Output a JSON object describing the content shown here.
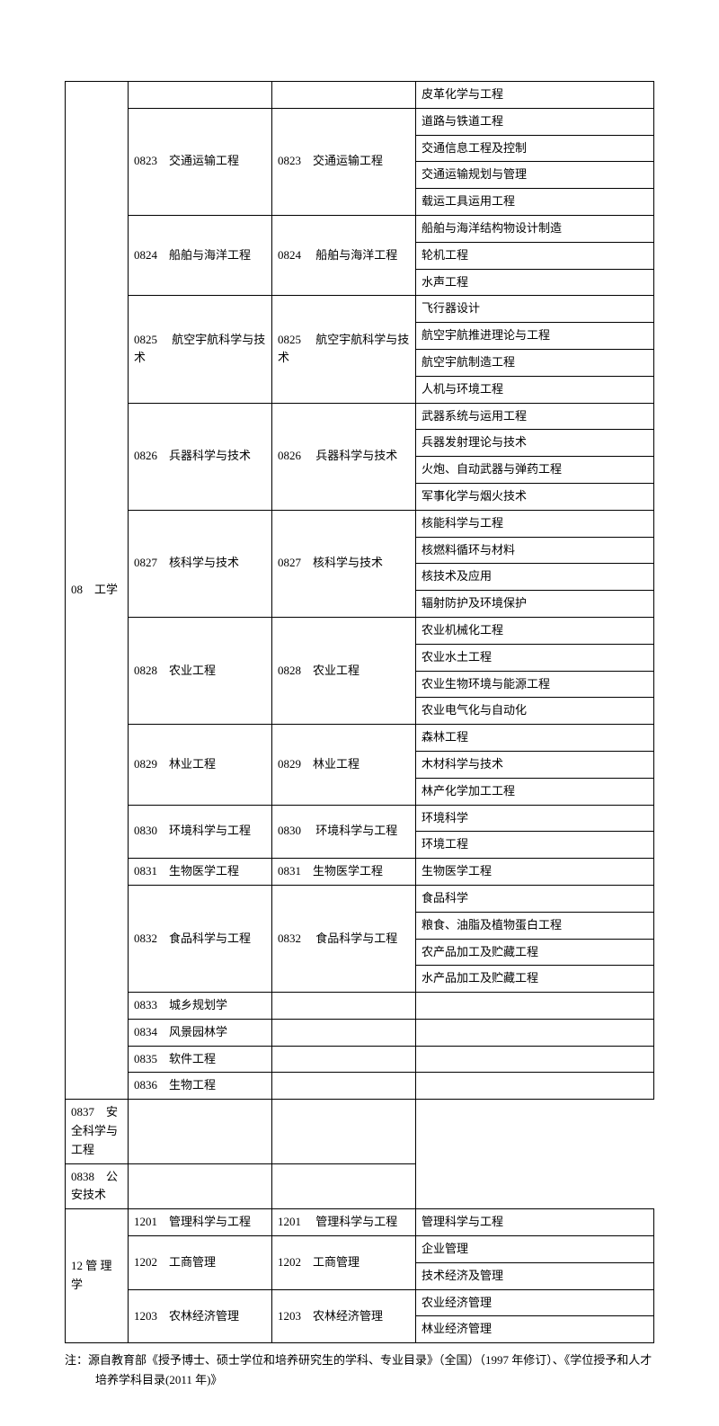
{
  "table": {
    "colWidths": [
      "70px",
      "160px",
      "160px",
      "auto"
    ],
    "border_color": "#000000",
    "font_size_pt": 10,
    "background": "#ffffff",
    "rows": [
      {
        "cells": [
          {
            "text": "08　工学",
            "rowspan": 38
          },
          {
            "text": "",
            "rowspan": 1
          },
          {
            "text": "",
            "rowspan": 1
          },
          {
            "text": "皮革化学与工程"
          }
        ]
      },
      {
        "cells": [
          {
            "text": "0823　交通运输工程",
            "rowspan": 4
          },
          {
            "text": "0823　交通运输工程",
            "rowspan": 4
          },
          {
            "text": "道路与铁道工程"
          }
        ]
      },
      {
        "cells": [
          {
            "text": "交通信息工程及控制"
          }
        ]
      },
      {
        "cells": [
          {
            "text": "交通运输规划与管理"
          }
        ]
      },
      {
        "cells": [
          {
            "text": "载运工具运用工程"
          }
        ]
      },
      {
        "cells": [
          {
            "text": "0824　船舶与海洋工程",
            "rowspan": 3
          },
          {
            "text": "0824　 船舶与海洋工程",
            "rowspan": 3
          },
          {
            "text": "船舶与海洋结构物设计制造"
          }
        ]
      },
      {
        "cells": [
          {
            "text": "轮机工程"
          }
        ]
      },
      {
        "cells": [
          {
            "text": "水声工程"
          }
        ]
      },
      {
        "cells": [
          {
            "text": "0825　 航空宇航科学与技术",
            "rowspan": 4
          },
          {
            "text": "0825　 航空宇航科学与技术",
            "rowspan": 4
          },
          {
            "text": "飞行器设计"
          }
        ]
      },
      {
        "cells": [
          {
            "text": "航空宇航推进理论与工程"
          }
        ]
      },
      {
        "cells": [
          {
            "text": "航空宇航制造工程"
          }
        ]
      },
      {
        "cells": [
          {
            "text": "人机与环境工程"
          }
        ]
      },
      {
        "cells": [
          {
            "text": "0826　兵器科学与技术",
            "rowspan": 4
          },
          {
            "text": "0826　 兵器科学与技术",
            "rowspan": 4
          },
          {
            "text": "武器系统与运用工程"
          }
        ]
      },
      {
        "cells": [
          {
            "text": "兵器发射理论与技术"
          }
        ]
      },
      {
        "cells": [
          {
            "text": "火炮、自动武器与弹药工程"
          }
        ]
      },
      {
        "cells": [
          {
            "text": "军事化学与烟火技术"
          }
        ]
      },
      {
        "cells": [
          {
            "text": "0827　核科学与技术",
            "rowspan": 4
          },
          {
            "text": "0827　核科学与技术",
            "rowspan": 4
          },
          {
            "text": "核能科学与工程"
          }
        ]
      },
      {
        "cells": [
          {
            "text": "核燃料循环与材料"
          }
        ]
      },
      {
        "cells": [
          {
            "text": "核技术及应用"
          }
        ]
      },
      {
        "cells": [
          {
            "text": "辐射防护及环境保护"
          }
        ]
      },
      {
        "cells": [
          {
            "text": "0828　农业工程",
            "rowspan": 4
          },
          {
            "text": "0828　农业工程",
            "rowspan": 4
          },
          {
            "text": "农业机械化工程"
          }
        ]
      },
      {
        "cells": [
          {
            "text": "农业水土工程"
          }
        ]
      },
      {
        "cells": [
          {
            "text": "农业生物环境与能源工程"
          }
        ]
      },
      {
        "cells": [
          {
            "text": "农业电气化与自动化"
          }
        ]
      },
      {
        "cells": [
          {
            "text": "0829　林业工程",
            "rowspan": 3
          },
          {
            "text": "0829　林业工程",
            "rowspan": 3
          },
          {
            "text": "森林工程"
          }
        ]
      },
      {
        "cells": [
          {
            "text": "木材科学与技术"
          }
        ]
      },
      {
        "cells": [
          {
            "text": "林产化学加工工程"
          }
        ]
      },
      {
        "cells": [
          {
            "text": "0830　环境科学与工程",
            "rowspan": 2
          },
          {
            "text": "0830　 环境科学与工程",
            "rowspan": 2
          },
          {
            "text": "环境科学"
          }
        ]
      },
      {
        "cells": [
          {
            "text": "环境工程"
          }
        ]
      },
      {
        "cells": [
          {
            "text": "0831　生物医学工程"
          },
          {
            "text": "0831　生物医学工程"
          },
          {
            "text": "生物医学工程"
          }
        ]
      },
      {
        "cells": [
          {
            "text": "0832　食品科学与工程",
            "rowspan": 4
          },
          {
            "text": "0832　 食品科学与工程",
            "rowspan": 4
          },
          {
            "text": "食品科学"
          }
        ]
      },
      {
        "cells": [
          {
            "text": "粮食、油脂及植物蛋白工程"
          }
        ]
      },
      {
        "cells": [
          {
            "text": "农产品加工及贮藏工程"
          }
        ]
      },
      {
        "cells": [
          {
            "text": "水产品加工及贮藏工程"
          }
        ]
      },
      {
        "cells": [
          {
            "text": "0833　城乡规划学"
          },
          {
            "text": ""
          },
          {
            "text": ""
          }
        ]
      },
      {
        "cells": [
          {
            "text": "0834　风景园林学"
          },
          {
            "text": ""
          },
          {
            "text": ""
          }
        ]
      },
      {
        "cells": [
          {
            "text": "0835　软件工程"
          },
          {
            "text": ""
          },
          {
            "text": ""
          }
        ]
      },
      {
        "cells": [
          {
            "text": "0836　生物工程"
          },
          {
            "text": ""
          },
          {
            "text": ""
          }
        ]
      },
      {
        "cells": [
          {
            "text": "0837　安全科学与工程"
          },
          {
            "text": ""
          },
          {
            "text": ""
          }
        ]
      },
      {
        "cells": [
          {
            "text": "0838　公安技术"
          },
          {
            "text": ""
          },
          {
            "text": ""
          }
        ]
      },
      {
        "cells": [
          {
            "text": "12 管 理学",
            "rowspan": 5
          },
          {
            "text": "1201　管理科学与工程"
          },
          {
            "text": "1201　 管理科学与工程"
          },
          {
            "text": "管理科学与工程"
          }
        ]
      },
      {
        "cells": [
          {
            "text": "1202　工商管理",
            "rowspan": 2
          },
          {
            "text": "1202　工商管理",
            "rowspan": 2
          },
          {
            "text": "企业管理"
          }
        ]
      },
      {
        "cells": [
          {
            "text": "技术经济及管理"
          }
        ]
      },
      {
        "cells": [
          {
            "text": "1203　农林经济管理",
            "rowspan": 2
          },
          {
            "text": "1203　农林经济管理",
            "rowspan": 2
          },
          {
            "text": "农业经济管理"
          }
        ]
      },
      {
        "cells": [
          {
            "text": "林业经济管理"
          }
        ]
      }
    ]
  },
  "footnote": "注：源自教育部《授予博士、硕士学位和培养研究生的学科、专业目录》（全国）（1997 年修订）、《学位授予和人才培养学科目录(2011 年)》"
}
